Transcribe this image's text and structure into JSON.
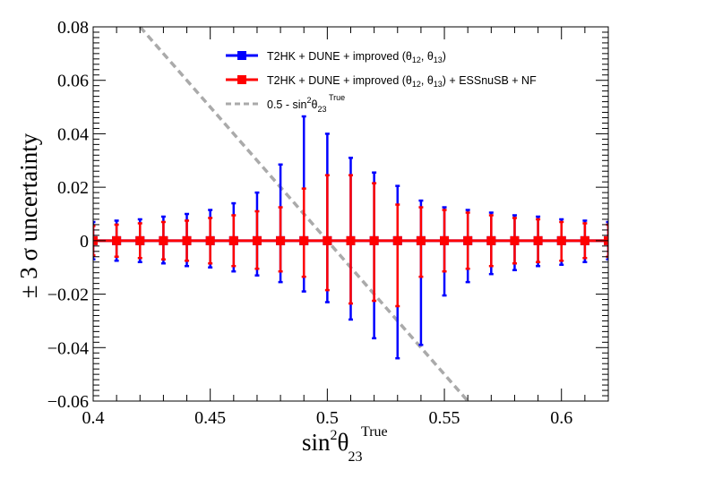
{
  "chart_data": {
    "type": "scatter",
    "title": "",
    "xlabel": {
      "base": "sin",
      "sup1": "2",
      "theta": "θ",
      "sub": "23",
      "sup2": "True"
    },
    "ylabel": "± 3 σ uncertainty",
    "xlim": [
      0.4,
      0.62
    ],
    "ylim": [
      -0.06,
      0.08
    ],
    "x_ticks": [
      0.4,
      0.45,
      0.5,
      0.55,
      0.6
    ],
    "x_tick_labels": [
      "0.4",
      "0.45",
      "0.5",
      "0.55",
      "0.6"
    ],
    "y_ticks": [
      -0.06,
      -0.04,
      -0.02,
      0,
      0.02,
      0.04,
      0.06,
      0.08
    ],
    "y_tick_labels": [
      "−0.06",
      "−0.04",
      "−0.02",
      "0",
      "0.02",
      "0.04",
      "0.06",
      "0.08"
    ],
    "grid": false,
    "legend_position": "top-right",
    "x": [
      0.4,
      0.41,
      0.42,
      0.43,
      0.44,
      0.45,
      0.46,
      0.47,
      0.48,
      0.49,
      0.5,
      0.51,
      0.52,
      0.53,
      0.54,
      0.55,
      0.56,
      0.57,
      0.58,
      0.59,
      0.6,
      0.61,
      0.62
    ],
    "series": [
      {
        "name": "T2HK + DUNE + improved",
        "legend": {
          "text": "T2HK + DUNE + improved (θ",
          "s1": "12",
          "mid": ", θ",
          "s2": "13",
          "end": ")"
        },
        "color": "#0000ff",
        "y": [
          0,
          0,
          0,
          0,
          0,
          0,
          0,
          0,
          0,
          0,
          0,
          0,
          0,
          0,
          0,
          0,
          0,
          0,
          0,
          0,
          0,
          0,
          0
        ],
        "err_up": [
          0.007,
          0.0075,
          0.008,
          0.009,
          0.01,
          0.0115,
          0.014,
          0.018,
          0.0285,
          0.0465,
          0.04,
          0.031,
          0.0255,
          0.0205,
          0.015,
          0.0125,
          0.0115,
          0.0105,
          0.0095,
          0.009,
          0.008,
          0.0075,
          0.007
        ],
        "err_down": [
          0.007,
          0.0075,
          0.008,
          0.0085,
          0.0095,
          0.01,
          0.0115,
          0.013,
          0.0155,
          0.019,
          0.023,
          0.0295,
          0.0365,
          0.044,
          0.039,
          0.0205,
          0.0155,
          0.0125,
          0.011,
          0.0095,
          0.009,
          0.008,
          0.007
        ]
      },
      {
        "name": "T2HK + DUNE + improved + ESSnuSB + NF",
        "legend": {
          "text": "T2HK + DUNE + improved (θ",
          "s1": "12",
          "mid": ", θ",
          "s2": "13",
          "end": ") + ESSnuSB + NF"
        },
        "color": "#ff0000",
        "y": [
          0,
          0,
          0,
          0,
          0,
          0,
          0,
          0,
          0,
          0,
          0,
          0,
          0,
          0,
          0,
          0,
          0,
          0,
          0,
          0,
          0,
          0,
          0
        ],
        "err_up": [
          0.0055,
          0.006,
          0.0065,
          0.007,
          0.0075,
          0.0085,
          0.0095,
          0.011,
          0.0125,
          0.0195,
          0.0245,
          0.0245,
          0.0215,
          0.0135,
          0.0125,
          0.0115,
          0.0105,
          0.0095,
          0.0085,
          0.008,
          0.007,
          0.0065,
          0.006
        ],
        "err_down": [
          0.0055,
          0.006,
          0.0065,
          0.007,
          0.0075,
          0.0085,
          0.0095,
          0.0105,
          0.0115,
          0.0135,
          0.0185,
          0.0235,
          0.0225,
          0.0245,
          0.0135,
          0.0115,
          0.0105,
          0.0095,
          0.0085,
          0.008,
          0.0075,
          0.0065,
          0.006
        ]
      }
    ],
    "reference_line": {
      "name": "0.5 - sin2θ23True",
      "legend": {
        "text": "0.5 - sin",
        "sup1": "2",
        "theta": "θ",
        "sub": "23",
        "sup2": "True"
      },
      "color": "#aaaaaa",
      "x": [
        0.42,
        0.56
      ],
      "y": [
        0.08,
        -0.06
      ]
    }
  }
}
